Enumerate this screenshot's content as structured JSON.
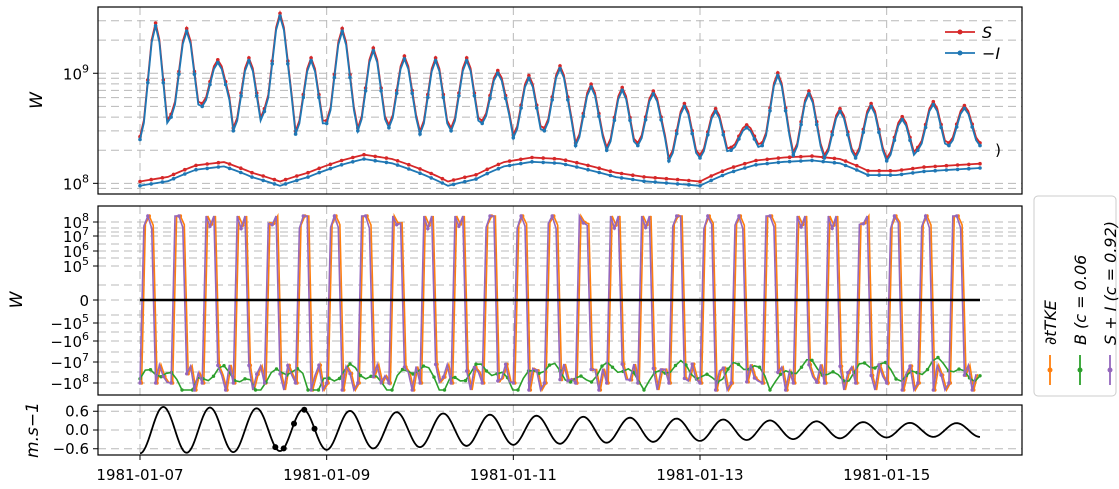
{
  "chart_data": [
    {
      "type": "line",
      "ylabel": "W",
      "yscale": "log",
      "ylim": [
        80000000,
        4000000000
      ],
      "x_range": [
        "1981-01-07",
        "1981-01-16"
      ],
      "yticks": [
        {
          "v": 100000000,
          "label": "10",
          "sup": "8"
        },
        {
          "v": 1000000000,
          "label": "10",
          "sup": "9"
        }
      ],
      "xticks": [
        "1981-01-07",
        "1981-01-09",
        "1981-01-11",
        "1981-01-13",
        "1981-01-15"
      ],
      "grid": true,
      "legend_position": "top-right",
      "annotation": ")",
      "series": [
        {
          "name": "S",
          "math": "S",
          "color": "#d62728"
        },
        {
          "name": "−I",
          "math": "−I",
          "color": "#1f77b4"
        }
      ],
      "upper_peaks": [
        2700000000,
        2400000000,
        1250000000,
        1300000000,
        3300000000,
        1300000000,
        2400000000,
        1600000000,
        1350000000,
        1300000000,
        1300000000,
        1000000000,
        900000000,
        1100000000,
        750000000,
        700000000,
        650000000,
        500000000,
        450000000,
        320000000,
        950000000,
        650000000,
        450000000,
        500000000,
        380000000,
        520000000,
        480000000
      ],
      "upper_troughs": [
        250000000,
        400000000,
        500000000,
        300000000,
        450000000,
        280000000,
        350000000,
        300000000,
        320000000,
        280000000,
        300000000,
        350000000,
        260000000,
        300000000,
        220000000,
        200000000,
        220000000,
        160000000,
        170000000,
        200000000,
        220000000,
        180000000,
        170000000,
        170000000,
        160000000,
        200000000,
        220000000
      ],
      "lower_envelope": [
        [
          0,
          100000000
        ],
        [
          0.5,
          110000000
        ],
        [
          1.0,
          140000000
        ],
        [
          1.5,
          150000000
        ],
        [
          2.0,
          120000000
        ],
        [
          2.5,
          100000000
        ],
        [
          3.0,
          120000000
        ],
        [
          3.6,
          155000000
        ],
        [
          4.0,
          175000000
        ],
        [
          4.5,
          160000000
        ],
        [
          5.0,
          130000000
        ],
        [
          5.5,
          100000000
        ],
        [
          6.0,
          115000000
        ],
        [
          6.5,
          150000000
        ],
        [
          7.0,
          165000000
        ],
        [
          7.5,
          160000000
        ],
        [
          8.0,
          140000000
        ],
        [
          8.5,
          120000000
        ],
        [
          9.0,
          110000000
        ],
        [
          9.5,
          105000000
        ],
        [
          10.0,
          100000000
        ],
        [
          10.5,
          130000000
        ],
        [
          11.0,
          155000000
        ],
        [
          11.5,
          165000000
        ],
        [
          12.0,
          170000000
        ],
        [
          12.5,
          160000000
        ],
        [
          13.0,
          125000000
        ],
        [
          13.5,
          125000000
        ],
        [
          14.0,
          135000000
        ],
        [
          14.5,
          140000000
        ],
        [
          15.0,
          145000000
        ]
      ]
    },
    {
      "type": "line",
      "ylabel": "W",
      "yscale": "symlog",
      "x_range": [
        "1981-01-07",
        "1981-01-16"
      ],
      "yticks": [
        {
          "v": 8,
          "label": "10",
          "sup": "8"
        },
        {
          "v": 7,
          "label": "10",
          "sup": "7"
        },
        {
          "v": 6,
          "label": "10",
          "sup": "6"
        },
        {
          "v": 5,
          "label": "10",
          "sup": "5"
        },
        {
          "v": 0,
          "label": "0",
          "sup": ""
        },
        {
          "v": -5,
          "label": "−10",
          "sup": "5"
        },
        {
          "v": -6,
          "label": "−10",
          "sup": "6"
        },
        {
          "v": -7,
          "label": "−10",
          "sup": "7"
        },
        {
          "v": -8,
          "label": "−10",
          "sup": "8"
        }
      ],
      "grid": true,
      "legend_position": "right (outside, rotated)",
      "series": [
        {
          "name": "∂tTKE",
          "math": "∂tTKE",
          "color": "#ff7f0e"
        },
        {
          "name": "B (c = 0.06",
          "math": "B (c = 0.06",
          "color": "#2ca02c"
        },
        {
          "name": "S + I (c = 0.92)",
          "math": "S + I (c = 0.92)",
          "color": "#9467bd"
        }
      ],
      "zero_line": {
        "value": 0,
        "color": "#000000"
      }
    },
    {
      "type": "line",
      "ylabel": "m.s−1",
      "ylim": [
        -0.8,
        0.8
      ],
      "yticks": [
        0.6,
        0.0,
        -0.6
      ],
      "ytick_labels": [
        "0.6",
        "0.0",
        "−0.6"
      ],
      "x_range": [
        "1981-01-07",
        "1981-01-16"
      ],
      "xticks": [
        "1981-01-07",
        "1981-01-09",
        "1981-01-11",
        "1981-01-13",
        "1981-01-15"
      ],
      "grid": true,
      "series": [
        {
          "name": "",
          "color": "#000000"
        }
      ],
      "amplitude_envelope": [
        [
          0,
          0.75
        ],
        [
          2.0,
          0.7
        ],
        [
          4.0,
          0.6
        ],
        [
          6.0,
          0.5
        ],
        [
          8.0,
          0.42
        ],
        [
          10.0,
          0.35
        ],
        [
          12.0,
          0.28
        ],
        [
          14.0,
          0.22
        ],
        [
          15.0,
          0.22
        ]
      ],
      "highlighted_points_day": [
        1.45,
        1.54,
        1.65,
        1.76,
        1.87
      ]
    }
  ]
}
